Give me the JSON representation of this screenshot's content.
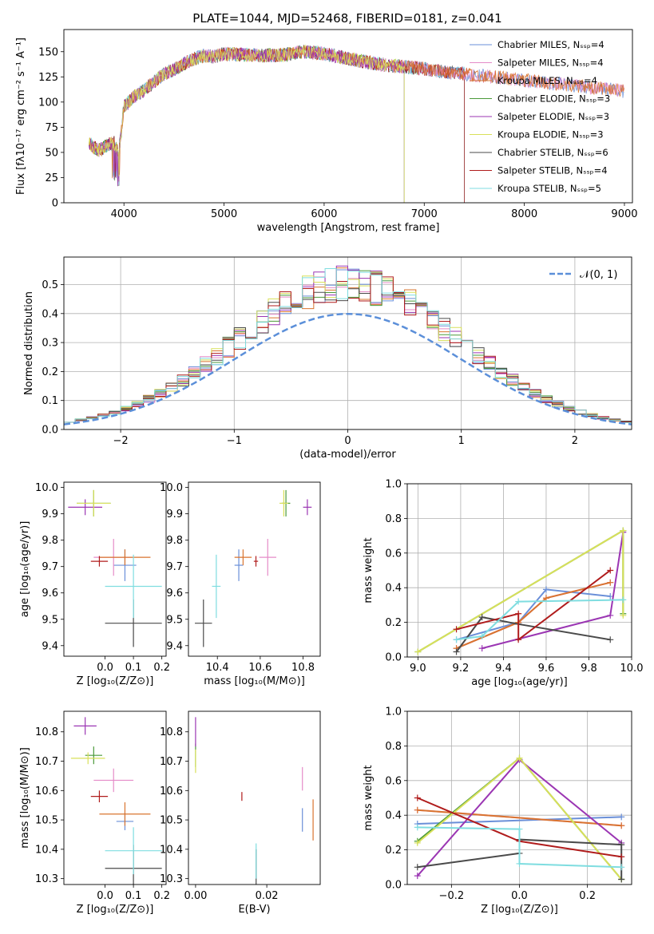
{
  "title": "PLATE=1044, MJD=52468, FIBERID=0181, z=0.041",
  "colors": {
    "Chabrier MILES": "#6a8fd8",
    "Salpeter MILES": "#e58bc8",
    "Kroupa MILES": "#d9742f",
    "Chabrier ELODIE": "#4a9a3a",
    "Salpeter ELODIE": "#9b36b3",
    "Kroupa ELODIE": "#d8e05a",
    "Chabrier STELIB": "#4a4a4a",
    "Salpeter STELIB": "#b01c1c",
    "Kroupa STELIB": "#7fdde0",
    "gaussian": "#5b8fd9"
  },
  "chart_data": [
    {
      "type": "line",
      "id": "spectrum",
      "title": "PLATE=1044, MJD=52468, FIBERID=0181, z=0.041",
      "xlabel": "wavelength [Angstrom, rest frame]",
      "ylabel": "Flux [fλ10⁻¹⁷ erg cm⁻² s⁻¹ A⁻¹]",
      "xlim": [
        3400,
        9080
      ],
      "ylim": [
        0,
        172
      ],
      "xticks": [
        4000,
        5000,
        6000,
        7000,
        8000,
        9000
      ],
      "yticks": [
        0,
        25,
        50,
        75,
        100,
        125,
        150
      ],
      "legend_position": "top-right",
      "continuum": {
        "x": [
          3650,
          3700,
          3750,
          3800,
          3850,
          3900,
          3950,
          4000,
          4100,
          4200,
          4300,
          4400,
          4500,
          4600,
          4700,
          4800,
          4900,
          5000,
          5200,
          5400,
          5600,
          5800,
          6000,
          6200,
          6400,
          6600,
          6800,
          7000,
          7200,
          7400
        ],
        "y": [
          60,
          55,
          52,
          55,
          58,
          60,
          50,
          95,
          105,
          112,
          120,
          128,
          132,
          138,
          143,
          146,
          145,
          148,
          147,
          146,
          147,
          150,
          148,
          144,
          140,
          137,
          135,
          133,
          130,
          128
        ]
      },
      "series": [
        {
          "name": "Chabrier MILES, Nₛₛₚ=4",
          "x_end": 9000
        },
        {
          "name": "Salpeter MILES, Nₛₛₚ=4",
          "x_end": 9000
        },
        {
          "name": "Kroupa MILES, Nₛₛₚ=4",
          "x_end": 9000
        },
        {
          "name": "Chabrier ELODIE, Nₛₛₚ=3",
          "x_end": 6800
        },
        {
          "name": "Salpeter ELODIE, Nₛₛₚ=3",
          "x_end": 6800
        },
        {
          "name": "Kroupa ELODIE, Nₛₛₚ=3",
          "x_end": 6800
        },
        {
          "name": "Chabrier STELIB, Nₛₛₚ=6",
          "x_end": 7400
        },
        {
          "name": "Salpeter STELIB, Nₛₛₚ=4",
          "x_end": 7400
        },
        {
          "name": "Kroupa STELIB, Nₛₛₚ=5",
          "x_end": 7400
        }
      ]
    },
    {
      "type": "histogram",
      "id": "residuals",
      "xlabel": "(data-model)/error",
      "ylabel": "Normed distribution",
      "xlim": [
        -2.5,
        2.5
      ],
      "ylim": [
        0,
        0.595
      ],
      "xticks": [
        -2,
        -1,
        0,
        1,
        2
      ],
      "yticks": [
        0.0,
        0.1,
        0.2,
        0.3,
        0.4,
        0.5
      ],
      "grid": true,
      "legend_position": "top-right",
      "legend": "𝒩(0, 1)",
      "gaussian": {
        "mean": 0,
        "sigma": 1
      },
      "bin_edges_range": [
        -2.5,
        2.5
      ],
      "bin_count": 50
    },
    {
      "type": "errorbar",
      "id": "age-vs-Z",
      "xlabel": "Z [log₁₀(Z/Z⊙)]",
      "ylabel": "age  [log₁₀(age/yr)]",
      "xlim": [
        -0.145,
        0.215
      ],
      "ylim": [
        9.36,
        10.02
      ],
      "xticks": [
        0.0,
        0.1,
        0.2
      ],
      "yticks": [
        9.4,
        9.5,
        9.6,
        9.7,
        9.8,
        9.9,
        10.0
      ],
      "points": [
        {
          "model": "Chabrier MILES",
          "x": 0.07,
          "y": 9.705,
          "xerr": 0.04,
          "yerr": 0.06
        },
        {
          "model": "Salpeter MILES",
          "x": 0.03,
          "y": 9.735,
          "xerr": 0.07,
          "yerr": 0.07
        },
        {
          "model": "Kroupa MILES",
          "x": 0.07,
          "y": 9.735,
          "xerr": 0.09,
          "yerr": 0.03
        },
        {
          "model": "Chabrier ELODIE",
          "x": -0.04,
          "y": 9.94,
          "xerr": 0.06,
          "yerr": 0.05
        },
        {
          "model": "Salpeter ELODIE",
          "x": -0.07,
          "y": 9.925,
          "xerr": 0.06,
          "yerr": 0.03
        },
        {
          "model": "Kroupa ELODIE",
          "x": -0.04,
          "y": 9.94,
          "xerr": 0.06,
          "yerr": 0.05
        },
        {
          "model": "Chabrier STELIB",
          "x": 0.1,
          "y": 9.485,
          "xerr": 0.1,
          "yerr": 0.09
        },
        {
          "model": "Salpeter STELIB",
          "x": -0.02,
          "y": 9.72,
          "xerr": 0.03,
          "yerr": 0.02
        },
        {
          "model": "Kroupa STELIB",
          "x": 0.1,
          "y": 9.625,
          "xerr": 0.1,
          "yerr": 0.12
        }
      ]
    },
    {
      "type": "errorbar",
      "id": "age-vs-mass",
      "xlabel": "mass [log₁₀(M/M⊙)]",
      "ylabel": "",
      "xlim": [
        10.265,
        10.88
      ],
      "ylim": [
        9.36,
        10.02
      ],
      "xticks": [
        10.4,
        10.6,
        10.8
      ],
      "yticks": [
        9.4,
        9.5,
        9.6,
        9.7,
        9.8,
        9.9,
        10.0
      ],
      "points": [
        {
          "model": "Chabrier MILES",
          "x": 10.5,
          "y": 9.705,
          "xerr": 0.02,
          "yerr": 0.06
        },
        {
          "model": "Salpeter MILES",
          "x": 10.635,
          "y": 9.735,
          "xerr": 0.04,
          "yerr": 0.07
        },
        {
          "model": "Kroupa MILES",
          "x": 10.52,
          "y": 9.735,
          "xerr": 0.04,
          "yerr": 0.03
        },
        {
          "model": "Chabrier ELODIE",
          "x": 10.72,
          "y": 9.94,
          "xerr": 0.02,
          "yerr": 0.05
        },
        {
          "model": "Salpeter ELODIE",
          "x": 10.82,
          "y": 9.925,
          "xerr": 0.02,
          "yerr": 0.03
        },
        {
          "model": "Kroupa ELODIE",
          "x": 10.71,
          "y": 9.94,
          "xerr": 0.02,
          "yerr": 0.05
        },
        {
          "model": "Chabrier STELIB",
          "x": 10.335,
          "y": 9.485,
          "xerr": 0.04,
          "yerr": 0.09
        },
        {
          "model": "Salpeter STELIB",
          "x": 10.58,
          "y": 9.72,
          "xerr": 0.01,
          "yerr": 0.02
        },
        {
          "model": "Kroupa STELIB",
          "x": 10.395,
          "y": 9.625,
          "xerr": 0.02,
          "yerr": 0.12
        }
      ]
    },
    {
      "type": "line",
      "id": "massweight-vs-age",
      "xlabel": "age  [log₁₀(age/yr)]",
      "ylabel": "mass weight",
      "xlim": [
        8.95,
        10.0
      ],
      "ylim": [
        0.0,
        1.0
      ],
      "xticks": [
        9.0,
        9.2,
        9.4,
        9.6,
        9.8,
        10.0
      ],
      "yticks": [
        0.0,
        0.2,
        0.4,
        0.6,
        0.8,
        1.0
      ],
      "grid": true,
      "series": [
        {
          "model": "Chabrier MILES",
          "x": [
            9.18,
            9.47,
            9.6,
            9.9
          ],
          "y": [
            0.1,
            0.2,
            0.39,
            0.35
          ]
        },
        {
          "model": "Salpeter MILES",
          "x": [
            9.18,
            9.47,
            9.6,
            9.9
          ],
          "y": [
            0.05,
            0.2,
            0.34,
            0.43
          ]
        },
        {
          "model": "Kroupa MILES",
          "x": [
            9.18,
            9.47,
            9.6,
            9.9
          ],
          "y": [
            0.05,
            0.2,
            0.34,
            0.43
          ]
        },
        {
          "model": "Chabrier ELODIE",
          "x": [
            9.0,
            9.96,
            9.96
          ],
          "y": [
            0.03,
            0.73,
            0.25
          ]
        },
        {
          "model": "Salpeter ELODIE",
          "x": [
            9.3,
            9.9,
            9.96
          ],
          "y": [
            0.05,
            0.24,
            0.72
          ]
        },
        {
          "model": "Kroupa ELODIE",
          "x": [
            9.0,
            9.96,
            9.96
          ],
          "y": [
            0.03,
            0.73,
            0.24
          ]
        },
        {
          "model": "Chabrier STELIB",
          "x": [
            9.18,
            9.3,
            9.47,
            9.9
          ],
          "y": [
            0.03,
            0.23,
            0.19,
            0.1
          ]
        },
        {
          "model": "Salpeter STELIB",
          "x": [
            9.18,
            9.47,
            9.47,
            9.9
          ],
          "y": [
            0.16,
            0.25,
            0.1,
            0.5
          ]
        },
        {
          "model": "Kroupa STELIB",
          "x": [
            9.18,
            9.3,
            9.47,
            9.96
          ],
          "y": [
            0.1,
            0.12,
            0.32,
            0.33
          ]
        }
      ]
    },
    {
      "type": "errorbar",
      "id": "mass-vs-Z",
      "xlabel": "Z [log₁₀(Z/Z⊙)]",
      "ylabel": "mass [log₁₀(M/M⊙)]",
      "xlim": [
        -0.145,
        0.215
      ],
      "ylim": [
        10.28,
        10.87
      ],
      "xticks": [
        0.0,
        0.1,
        0.2
      ],
      "yticks": [
        10.3,
        10.4,
        10.5,
        10.6,
        10.7,
        10.8
      ],
      "points": [
        {
          "model": "Chabrier MILES",
          "x": 0.07,
          "y": 10.495,
          "xerr": 0.03,
          "yerr": 0.03
        },
        {
          "model": "Salpeter MILES",
          "x": 0.03,
          "y": 10.635,
          "xerr": 0.07,
          "yerr": 0.04
        },
        {
          "model": "Kroupa MILES",
          "x": 0.07,
          "y": 10.52,
          "xerr": 0.09,
          "yerr": 0.04
        },
        {
          "model": "Chabrier ELODIE",
          "x": -0.04,
          "y": 10.72,
          "xerr": 0.03,
          "yerr": 0.03
        },
        {
          "model": "Salpeter ELODIE",
          "x": -0.07,
          "y": 10.82,
          "xerr": 0.04,
          "yerr": 0.03
        },
        {
          "model": "Kroupa ELODIE",
          "x": -0.06,
          "y": 10.71,
          "xerr": 0.06,
          "yerr": 0.02
        },
        {
          "model": "Chabrier STELIB",
          "x": 0.1,
          "y": 10.335,
          "xerr": 0.1,
          "yerr": 0.08
        },
        {
          "model": "Salpeter STELIB",
          "x": -0.02,
          "y": 10.58,
          "xerr": 0.03,
          "yerr": 0.02
        },
        {
          "model": "Kroupa STELIB",
          "x": 0.1,
          "y": 10.395,
          "xerr": 0.1,
          "yerr": 0.08
        }
      ]
    },
    {
      "type": "errorbar",
      "id": "mass-vs-ebv",
      "xlabel": "E(B-V)",
      "ylabel": "",
      "xlim": [
        -0.002,
        0.035
      ],
      "ylim": [
        10.28,
        10.87
      ],
      "xticks": [
        0.0,
        0.02
      ],
      "yticks": [
        10.3,
        10.4,
        10.5,
        10.6,
        10.7,
        10.8
      ],
      "points": [
        {
          "model": "Chabrier MILES",
          "x": 0.03,
          "y": 10.5,
          "xerr": 0,
          "yerr": 0.04
        },
        {
          "model": "Salpeter MILES",
          "x": 0.03,
          "y": 10.64,
          "xerr": 0,
          "yerr": 0.04
        },
        {
          "model": "Kroupa MILES",
          "x": 0.033,
          "y": 10.5,
          "xerr": 0,
          "yerr": 0.07
        },
        {
          "model": "Chabrier ELODIE",
          "x": 0.0,
          "y": 10.72,
          "xerr": 0,
          "yerr": 0.04
        },
        {
          "model": "Salpeter ELODIE",
          "x": 0.0,
          "y": 10.8,
          "xerr": 0,
          "yerr": 0.05
        },
        {
          "model": "Kroupa ELODIE",
          "x": 0.0,
          "y": 10.7,
          "xerr": 0,
          "yerr": 0.04
        },
        {
          "model": "Chabrier STELIB",
          "x": 0.017,
          "y": 10.34,
          "xerr": 0,
          "yerr": 0.06
        },
        {
          "model": "Salpeter STELIB",
          "x": 0.013,
          "y": 10.58,
          "xerr": 0,
          "yerr": 0.015
        },
        {
          "model": "Kroupa STELIB",
          "x": 0.017,
          "y": 10.36,
          "xerr": 0,
          "yerr": 0.06
        }
      ]
    },
    {
      "type": "line",
      "id": "massweight-vs-Z",
      "xlabel": "Z [log₁₀(Z/Z⊙)]",
      "ylabel": "mass weight",
      "xlim": [
        -0.33,
        0.33
      ],
      "ylim": [
        0.0,
        1.0
      ],
      "xticks": [
        -0.2,
        0.0,
        0.2
      ],
      "yticks": [
        0.0,
        0.2,
        0.4,
        0.6,
        0.8,
        1.0
      ],
      "grid": true,
      "series": [
        {
          "model": "Chabrier MILES",
          "x": [
            -0.3,
            0.3
          ],
          "y": [
            0.35,
            0.39
          ]
        },
        {
          "model": "Salpeter MILES",
          "x": [
            -0.3,
            0.3
          ],
          "y": [
            0.43,
            0.34
          ]
        },
        {
          "model": "Kroupa MILES",
          "x": [
            -0.3,
            0.3
          ],
          "y": [
            0.43,
            0.34
          ]
        },
        {
          "model": "Chabrier ELODIE",
          "x": [
            -0.3,
            0.0,
            0.3
          ],
          "y": [
            0.25,
            0.73,
            0.03
          ]
        },
        {
          "model": "Salpeter ELODIE",
          "x": [
            -0.3,
            0.0,
            0.3
          ],
          "y": [
            0.05,
            0.72,
            0.24
          ]
        },
        {
          "model": "Kroupa ELODIE",
          "x": [
            -0.3,
            0.0,
            0.3
          ],
          "y": [
            0.24,
            0.73,
            0.03
          ]
        },
        {
          "model": "Chabrier STELIB",
          "x": [
            -0.3,
            0.0,
            0.0,
            0.3,
            0.3
          ],
          "y": [
            0.1,
            0.18,
            0.26,
            0.23,
            0.03
          ]
        },
        {
          "model": "Salpeter STELIB",
          "x": [
            -0.3,
            0.0,
            0.3
          ],
          "y": [
            0.5,
            0.25,
            0.16
          ]
        },
        {
          "model": "Kroupa STELIB",
          "x": [
            -0.3,
            0.0,
            0.0,
            0.3
          ],
          "y": [
            0.33,
            0.32,
            0.12,
            0.1
          ]
        }
      ]
    }
  ]
}
